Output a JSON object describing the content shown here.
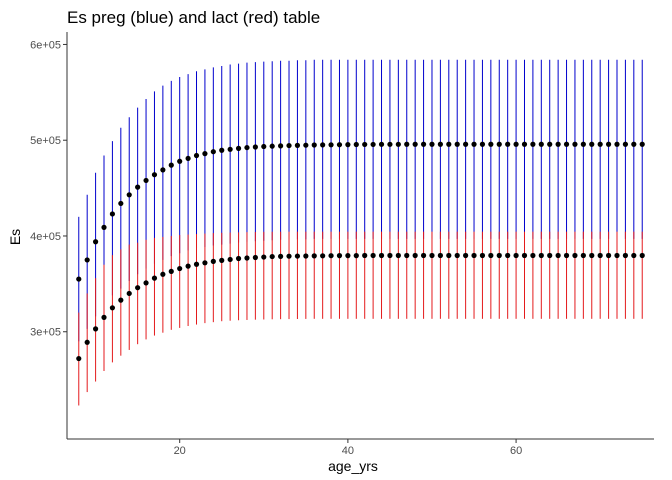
{
  "chart_data": {
    "type": "scatter",
    "title": "Es preg (blue) and lact (red) table",
    "xlabel": "age_yrs",
    "ylabel": "Es",
    "xlim": [
      6.6,
      76.4
    ],
    "ylim": [
      188000,
      613000
    ],
    "x_ticks": [
      20,
      40,
      60
    ],
    "x_tick_labels": [
      "20",
      "40",
      "60"
    ],
    "y_ticks": [
      300000,
      400000,
      500000,
      600000
    ],
    "y_tick_labels": [
      "3e+05",
      "4e+05",
      "5e+05",
      "6e+05"
    ],
    "grid": false,
    "legend": "none",
    "colors": {
      "preg": "#0000cd",
      "lact": "#e41a1c",
      "point": "#000000",
      "axis": "#333333"
    },
    "series": [
      {
        "x": [
          8,
          9,
          10,
          11,
          12,
          13,
          14,
          15,
          16,
          17,
          18,
          19,
          20,
          21,
          22,
          23,
          24,
          25,
          26,
          27,
          28,
          29,
          30,
          31,
          32,
          33,
          34,
          35,
          36,
          37,
          38,
          39,
          40,
          41,
          42,
          43,
          44,
          45,
          46,
          47,
          48,
          49,
          50,
          51,
          52,
          53,
          54,
          55,
          56,
          57,
          58,
          59,
          60,
          61,
          62,
          63,
          64,
          65,
          66,
          67,
          68,
          69,
          70,
          71,
          72,
          73,
          74,
          75
        ],
        "y": [
          355000,
          375000,
          394000,
          409000,
          423000,
          434000,
          443000,
          451000,
          458000,
          464000,
          469000,
          474000,
          478000,
          481000,
          484000,
          486000,
          488000,
          489500,
          490500,
          491500,
          492300,
          492900,
          493400,
          493800,
          494100,
          494400,
          494600,
          494800,
          495000,
          495100,
          495200,
          495300,
          495400,
          495500,
          495600,
          495600,
          495700,
          495700,
          495700,
          495800,
          495800,
          495800,
          495800,
          495800,
          495800,
          495800,
          495800,
          495800,
          495800,
          495800,
          495800,
          495800,
          495800,
          495800,
          495800,
          495800,
          495800,
          495800,
          495800,
          495800,
          495800,
          495800,
          495800,
          495800,
          495800,
          495800,
          495800,
          495800
        ],
        "lower": [
          290000,
          303000,
          316000,
          328000,
          338000,
          345000,
          353000,
          360000,
          366000,
          371000,
          375000,
          379000,
          382000,
          385000,
          387000,
          388500,
          390000,
          391000,
          392000,
          393000,
          394000,
          394500,
          395000,
          395500,
          396000,
          396000,
          396500,
          396500,
          397000,
          397000,
          397000,
          397000,
          397000,
          397000,
          397000,
          397000,
          397000,
          397000,
          397000,
          397000,
          397000,
          397000,
          397000,
          397000,
          397000,
          397000,
          397000,
          397000,
          397000,
          397000,
          397000,
          397000,
          397000,
          397000,
          397000,
          397000,
          397000,
          397000,
          397000,
          397000,
          397000,
          397000,
          397000,
          397000,
          397000,
          397000,
          397000,
          397000
        ],
        "upper": [
          420000,
          443000,
          466000,
          484000,
          499000,
          513000,
          524000,
          534000,
          543000,
          551000,
          557000,
          562000,
          566000,
          569000,
          572000,
          574000,
          576000,
          577500,
          579000,
          580000,
          581000,
          581500,
          582000,
          582500,
          583000,
          583000,
          583500,
          583500,
          584000,
          584000,
          584000,
          584000,
          584000,
          584000,
          584000,
          584000,
          584000,
          584000,
          584000,
          584000,
          584000,
          584000,
          584000,
          584000,
          584000,
          584000,
          584000,
          584000,
          584000,
          584000,
          584000,
          584000,
          584000,
          584000,
          584000,
          584000,
          584000,
          584000,
          584000,
          584000,
          584000,
          584000,
          584000,
          584000,
          584000,
          584000,
          584000,
          584000
        ]
      },
      {
        "x": [
          8,
          9,
          10,
          11,
          12,
          13,
          14,
          15,
          16,
          17,
          18,
          19,
          20,
          21,
          22,
          23,
          24,
          25,
          26,
          27,
          28,
          29,
          30,
          31,
          32,
          33,
          34,
          35,
          36,
          37,
          38,
          39,
          40,
          41,
          42,
          43,
          44,
          45,
          46,
          47,
          48,
          49,
          50,
          51,
          52,
          53,
          54,
          55,
          56,
          57,
          58,
          59,
          60,
          61,
          62,
          63,
          64,
          65,
          66,
          67,
          68,
          69,
          70,
          71,
          72,
          73,
          74,
          75
        ],
        "y": [
          272000,
          289000,
          303000,
          315000,
          325000,
          333000,
          340000,
          346000,
          351000,
          356000,
          360000,
          363000,
          366000,
          368500,
          370500,
          372000,
          373500,
          374500,
          375500,
          376500,
          377000,
          377500,
          378000,
          378500,
          378700,
          378900,
          379000,
          379100,
          379200,
          379300,
          379400,
          379500,
          379500,
          379500,
          379600,
          379600,
          379600,
          379600,
          379600,
          379600,
          379600,
          379600,
          379600,
          379600,
          379600,
          379600,
          379600,
          379600,
          379600,
          379600,
          379600,
          379600,
          379600,
          379600,
          379600,
          379600,
          379600,
          379600,
          379600,
          379600,
          379600,
          379600,
          379600,
          379600,
          379600,
          379600,
          379600,
          379600
        ],
        "lower": [
          223000,
          237000,
          248000,
          259000,
          268000,
          275000,
          281000,
          287000,
          292000,
          296000,
          299000,
          302000,
          304000,
          306000,
          307500,
          309000,
          310000,
          311000,
          311500,
          312000,
          312300,
          312600,
          312800,
          313000,
          313100,
          313200,
          313300,
          313400,
          313500,
          313500,
          313500,
          313500,
          313500,
          313500,
          313500,
          313500,
          313500,
          313500,
          313500,
          313500,
          313500,
          313500,
          313500,
          313500,
          313500,
          313500,
          313500,
          313500,
          313500,
          313500,
          313500,
          313500,
          313500,
          313500,
          313500,
          313500,
          313500,
          313500,
          313500,
          313500,
          313500,
          313500,
          313500,
          313500,
          313500,
          313500,
          313500,
          313500
        ],
        "upper": [
          320000,
          340000,
          356000,
          370000,
          380000,
          386000,
          391000,
          393000,
          396000,
          398000,
          399000,
          400000,
          401000,
          401500,
          402000,
          402500,
          403000,
          403300,
          403600,
          403800,
          404000,
          404200,
          404300,
          404400,
          404500,
          404500,
          404500,
          404500,
          404500,
          404500,
          404500,
          404500,
          404500,
          404500,
          404500,
          404500,
          404500,
          404500,
          404500,
          404500,
          404500,
          404500,
          404500,
          404500,
          404500,
          404500,
          404500,
          404500,
          404500,
          404500,
          404500,
          404500,
          404500,
          404500,
          404500,
          404500,
          404500,
          404500,
          404500,
          404500,
          404500,
          404500,
          404500,
          404500,
          404500,
          404500,
          404500,
          404500
        ]
      }
    ]
  }
}
